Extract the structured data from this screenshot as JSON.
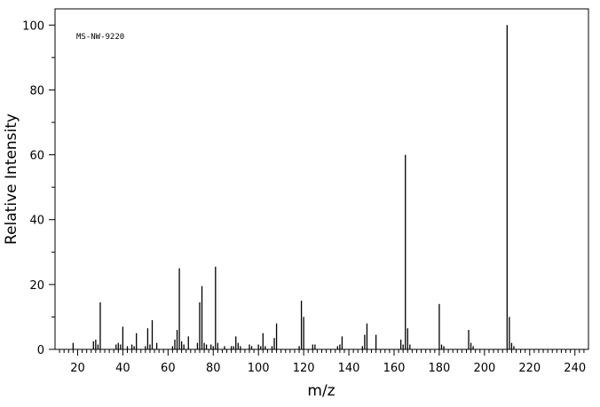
{
  "chart_data": {
    "type": "bar",
    "title": "",
    "annotation": "MS-NW-9220",
    "xlabel": "m/z",
    "ylabel": "Relative Intensity",
    "xlim": [
      10,
      246
    ],
    "ylim": [
      0,
      105
    ],
    "x_ticks": [
      20,
      40,
      60,
      80,
      100,
      120,
      140,
      160,
      180,
      200,
      220,
      240
    ],
    "y_ticks": [
      0,
      20,
      40,
      60,
      80,
      100
    ],
    "grid": false,
    "legend": "none",
    "series": [
      {
        "x": [
          18,
          27,
          28,
          29,
          30,
          37,
          38,
          39,
          40,
          42,
          44,
          45,
          46,
          50,
          51,
          52,
          53,
          55,
          62,
          63,
          64,
          65,
          66,
          67,
          69,
          73,
          74,
          75,
          76,
          77,
          79,
          80,
          81,
          82,
          85,
          88,
          89,
          90,
          91,
          92,
          96,
          97,
          100,
          101,
          102,
          103,
          106,
          107,
          108,
          118,
          119,
          120,
          124,
          125,
          135,
          136,
          137,
          146,
          147,
          148,
          152,
          163,
          164,
          165,
          166,
          167,
          180,
          181,
          182,
          193,
          194,
          195,
          210,
          211,
          212,
          213
        ],
        "values": [
          2,
          2.5,
          3,
          1.5,
          14.5,
          1.5,
          2,
          1.5,
          7,
          1,
          1.5,
          1,
          5,
          1,
          6.5,
          1.5,
          9,
          2,
          1,
          3,
          6,
          25,
          2.5,
          1.5,
          4,
          2,
          14.5,
          19.5,
          2,
          1.5,
          1.5,
          1,
          25.5,
          2,
          1,
          1,
          1,
          4,
          2,
          1,
          1.5,
          1,
          1.5,
          1,
          5,
          1,
          1,
          3.5,
          8,
          1,
          15,
          10,
          1.5,
          1.5,
          1,
          1.5,
          4,
          1,
          4.5,
          8,
          4.5,
          3,
          1.5,
          60,
          6.5,
          1.5,
          14,
          1.5,
          1,
          6,
          2,
          1,
          100,
          10,
          2,
          1
        ]
      }
    ]
  }
}
